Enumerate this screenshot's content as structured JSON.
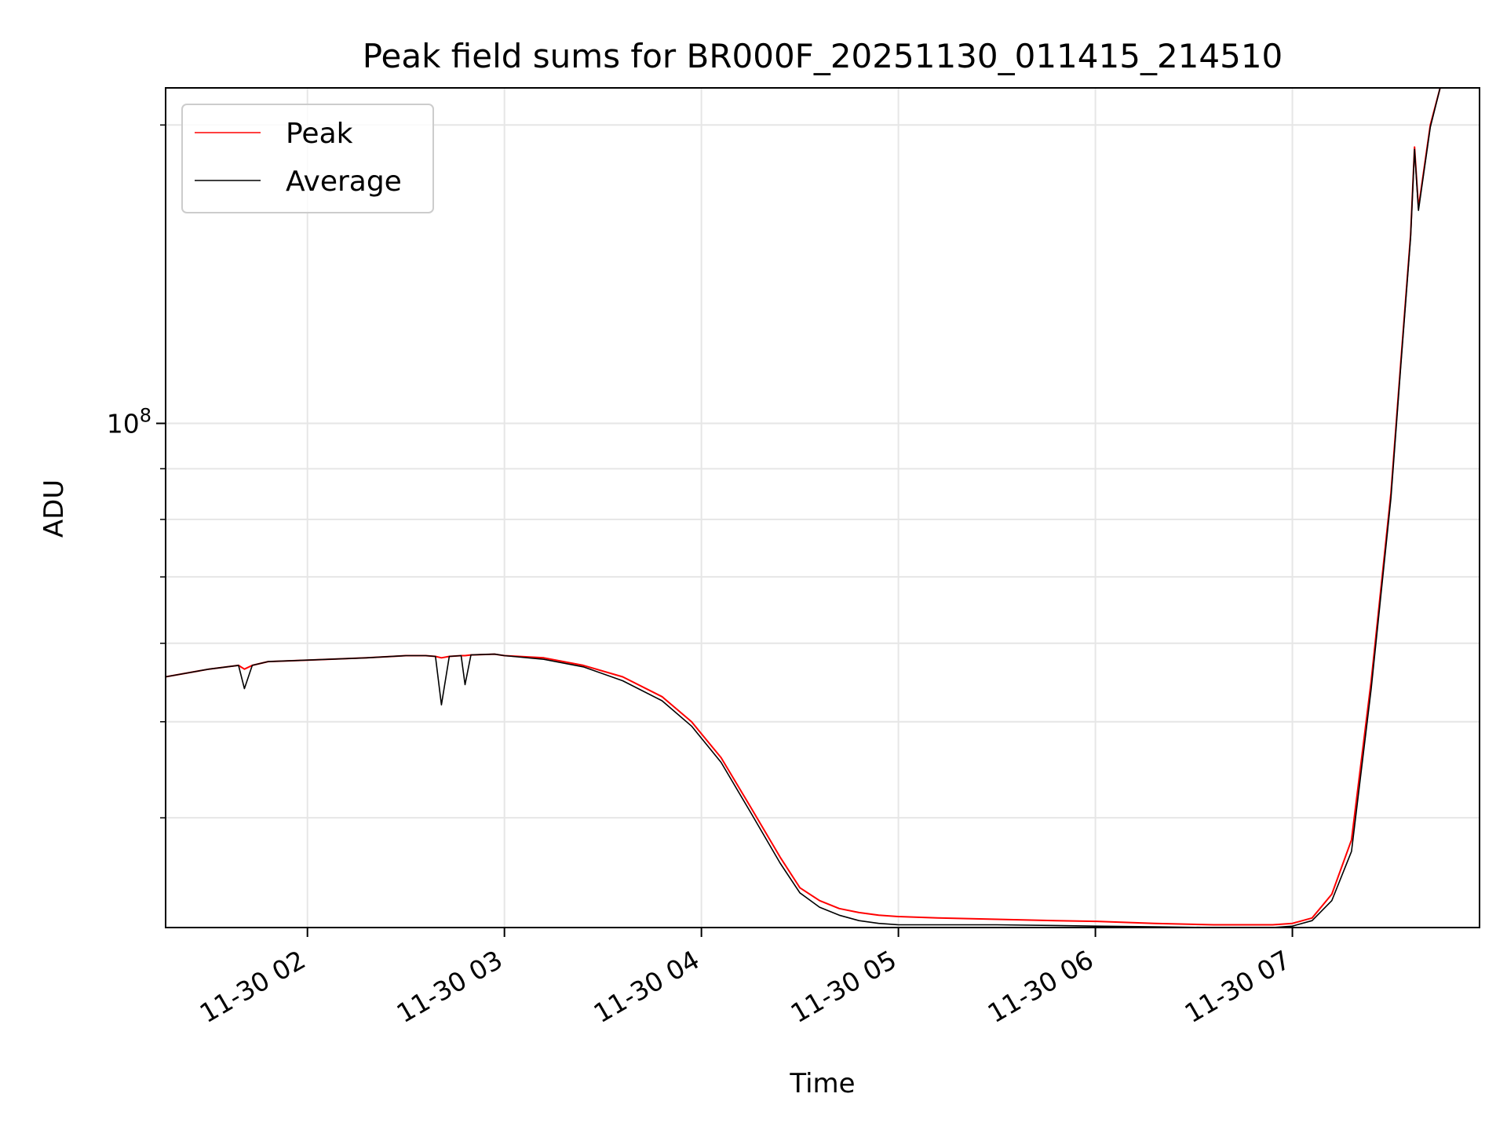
{
  "chart_data": {
    "type": "line",
    "title": "Peak field sums for BR000F_20251130_011415_214510",
    "xlabel": "Time",
    "ylabel": "ADU",
    "yscale": "log",
    "ylim": [
      31000000,
      218000000
    ],
    "xlim_hours": [
      1.28,
      7.95
    ],
    "grid": true,
    "legend_position": "upper-left",
    "x_tick_labels": [
      {
        "label": "11-30 02",
        "hour": 2
      },
      {
        "label": "11-30 03",
        "hour": 3
      },
      {
        "label": "11-30 04",
        "hour": 4
      },
      {
        "label": "11-30 05",
        "hour": 5
      },
      {
        "label": "11-30 06",
        "hour": 6
      },
      {
        "label": "11-30 07",
        "hour": 7
      }
    ],
    "y_major_tick": {
      "value": 100000000,
      "base": "10",
      "exp": "8"
    },
    "y_minor_ticks": [
      40000000,
      50000000,
      60000000,
      70000000,
      80000000,
      90000000,
      200000000
    ],
    "series": [
      {
        "name": "Peak",
        "color": "#ff0000",
        "hours": [
          1.28,
          1.5,
          1.65,
          1.68,
          1.72,
          1.8,
          2.0,
          2.3,
          2.5,
          2.6,
          2.65,
          2.68,
          2.72,
          2.78,
          2.8,
          2.83,
          2.95,
          3.0,
          3.2,
          3.4,
          3.6,
          3.8,
          3.95,
          4.1,
          4.25,
          4.4,
          4.5,
          4.6,
          4.7,
          4.8,
          4.9,
          5.0,
          5.2,
          5.5,
          5.8,
          6.0,
          6.3,
          6.6,
          6.9,
          7.0,
          7.1,
          7.2,
          7.3,
          7.4,
          7.5,
          7.55,
          7.6,
          7.62,
          7.64,
          7.7,
          7.75,
          7.8
        ],
        "values": [
          55500000,
          56500000,
          57000000,
          56500000,
          57000000,
          57500000,
          57700000,
          58000000,
          58300000,
          58300000,
          58200000,
          58000000,
          58200000,
          58300000,
          58300000,
          58400000,
          58500000,
          58300000,
          58000000,
          57000000,
          55500000,
          53000000,
          50000000,
          46000000,
          41000000,
          36500000,
          34000000,
          33000000,
          32400000,
          32100000,
          31900000,
          31800000,
          31700000,
          31600000,
          31500000,
          31450000,
          31300000,
          31200000,
          31200000,
          31300000,
          31700000,
          33500000,
          38000000,
          55000000,
          85000000,
          115000000,
          155000000,
          190000000,
          165000000,
          200000000,
          218000000,
          218000000
        ]
      },
      {
        "name": "Average",
        "color": "#000000",
        "hours": [
          1.28,
          1.5,
          1.65,
          1.68,
          1.72,
          1.8,
          2.0,
          2.3,
          2.5,
          2.6,
          2.65,
          2.68,
          2.72,
          2.78,
          2.8,
          2.83,
          2.95,
          3.0,
          3.2,
          3.4,
          3.6,
          3.8,
          3.95,
          4.1,
          4.25,
          4.4,
          4.5,
          4.6,
          4.7,
          4.8,
          4.9,
          5.0,
          5.2,
          5.5,
          5.8,
          6.0,
          6.3,
          6.6,
          6.9,
          7.0,
          7.1,
          7.2,
          7.3,
          7.4,
          7.5,
          7.55,
          7.6,
          7.62,
          7.64,
          7.7,
          7.75,
          7.8
        ],
        "values": [
          55500000,
          56500000,
          57000000,
          54000000,
          57000000,
          57500000,
          57700000,
          58000000,
          58300000,
          58300000,
          58200000,
          52000000,
          58200000,
          58300000,
          54500000,
          58400000,
          58500000,
          58300000,
          57800000,
          56800000,
          55000000,
          52500000,
          49500000,
          45500000,
          40500000,
          36000000,
          33600000,
          32500000,
          31900000,
          31500000,
          31300000,
          31200000,
          31200000,
          31200000,
          31150000,
          31100000,
          31050000,
          31000000,
          31000000,
          31100000,
          31500000,
          33000000,
          37000000,
          54000000,
          84000000,
          114000000,
          154000000,
          189000000,
          164000000,
          199000000,
          218000000,
          218000000
        ]
      }
    ]
  }
}
